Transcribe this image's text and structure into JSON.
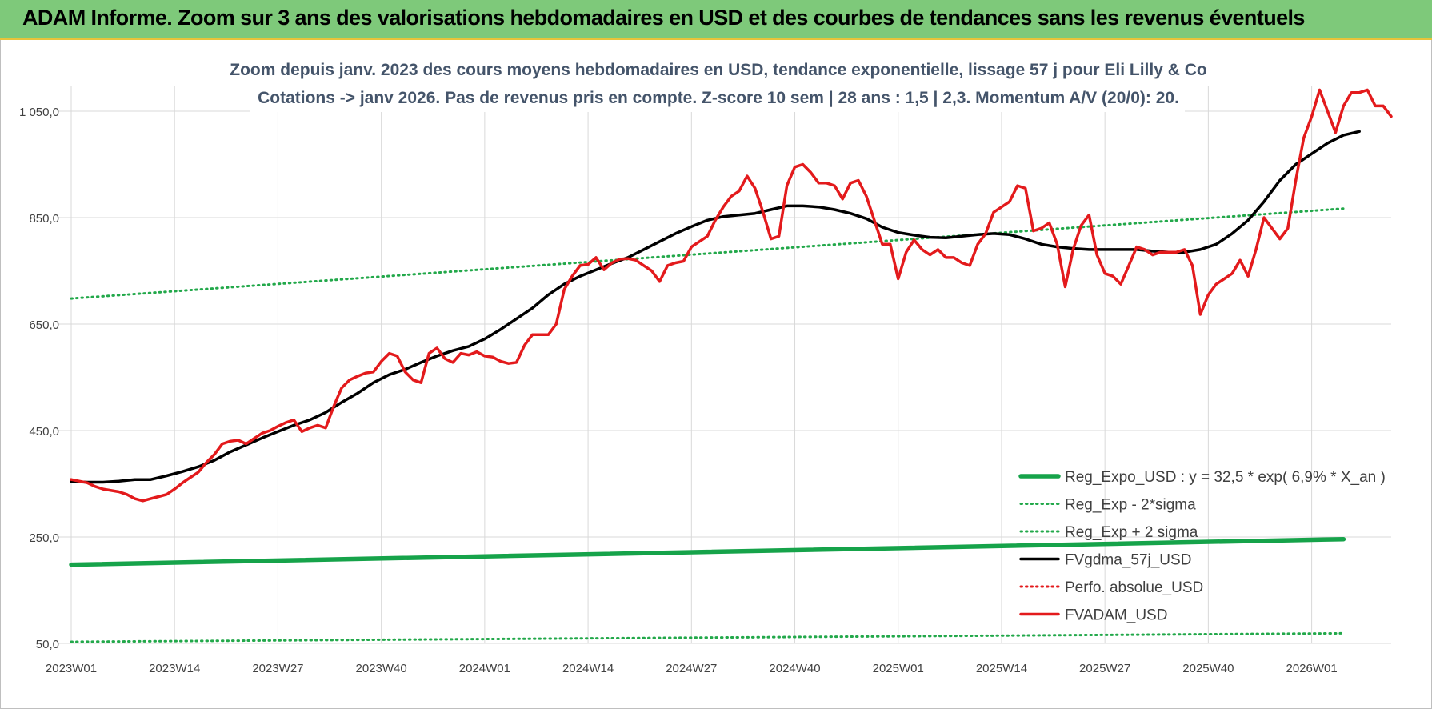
{
  "header": {
    "title": "ADAM Informe. Zoom sur 3 ans des valorisations hebdomadaires en USD et des courbes de tendances sans les revenus éventuels"
  },
  "chart_data": {
    "type": "line",
    "title": "Zoom depuis janv. 2023 des cours moyens hebdomadaires en USD, tendance exponentielle, lissage 57 j pour Eli Lilly & Co",
    "subtitle": "Cotations -> janv 2026. Pas de revenus pris en compte. Z-score 10 sem | 28 ans : 1,5 | 2,3. Momentum A/V (20/0): 20.",
    "xlabel": "",
    "ylabel": "",
    "ylim": [
      50,
      1050
    ],
    "yticks": [
      {
        "value": 50,
        "label": "50,0"
      },
      {
        "value": 250,
        "label": "250,0"
      },
      {
        "value": 450,
        "label": "450,0"
      },
      {
        "value": 650,
        "label": "650,0"
      },
      {
        "value": 850,
        "label": "850,0"
      },
      {
        "value": 1050,
        "label": "1 050,0"
      }
    ],
    "xticks": [
      {
        "week": 0,
        "label": "2023W01"
      },
      {
        "week": 13,
        "label": "2023W14"
      },
      {
        "week": 26,
        "label": "2023W27"
      },
      {
        "week": 39,
        "label": "2023W40"
      },
      {
        "week": 52,
        "label": "2024W01"
      },
      {
        "week": 65,
        "label": "2024W14"
      },
      {
        "week": 78,
        "label": "2024W27"
      },
      {
        "week": 91,
        "label": "2024W40"
      },
      {
        "week": 104,
        "label": "2025W01"
      },
      {
        "week": 117,
        "label": "2025W14"
      },
      {
        "week": 130,
        "label": "2025W27"
      },
      {
        "week": 143,
        "label": "2025W40"
      },
      {
        "week": 156,
        "label": "2026W01"
      }
    ],
    "grid": "vertical-and-horizontal",
    "legend_position": "bottom-right",
    "series": [
      {
        "name": "Reg_Expo_USD : y = 32,5 * exp( 6,9% * X_an )",
        "color": "#16a34a",
        "style": "solid-thick",
        "points": [
          [
            0,
            198
          ],
          [
            160,
            246
          ]
        ]
      },
      {
        "name": "Reg_Exp - 2*sigma",
        "color": "#22a84a",
        "style": "dotted",
        "points": [
          [
            0,
            53
          ],
          [
            160,
            69
          ]
        ]
      },
      {
        "name": "Reg_Exp + 2 sigma",
        "color": "#22a84a",
        "style": "dotted",
        "points": [
          [
            0,
            698
          ],
          [
            160,
            867
          ]
        ]
      },
      {
        "name": "FVgdma_57j_USD",
        "color": "#000000",
        "style": "solid",
        "points": [
          [
            0,
            354
          ],
          [
            2,
            353
          ],
          [
            4,
            353
          ],
          [
            6,
            355
          ],
          [
            8,
            358
          ],
          [
            10,
            358
          ],
          [
            12,
            365
          ],
          [
            14,
            373
          ],
          [
            16,
            382
          ],
          [
            18,
            394
          ],
          [
            20,
            410
          ],
          [
            22,
            423
          ],
          [
            24,
            436
          ],
          [
            26,
            448
          ],
          [
            28,
            460
          ],
          [
            30,
            470
          ],
          [
            32,
            484
          ],
          [
            34,
            503
          ],
          [
            36,
            520
          ],
          [
            38,
            540
          ],
          [
            40,
            555
          ],
          [
            42,
            565
          ],
          [
            44,
            578
          ],
          [
            46,
            590
          ],
          [
            48,
            600
          ],
          [
            50,
            608
          ],
          [
            52,
            622
          ],
          [
            54,
            640
          ],
          [
            56,
            660
          ],
          [
            58,
            680
          ],
          [
            60,
            705
          ],
          [
            62,
            725
          ],
          [
            64,
            740
          ],
          [
            66,
            752
          ],
          [
            68,
            764
          ],
          [
            70,
            775
          ],
          [
            72,
            790
          ],
          [
            74,
            805
          ],
          [
            76,
            820
          ],
          [
            78,
            833
          ],
          [
            80,
            845
          ],
          [
            82,
            852
          ],
          [
            84,
            855
          ],
          [
            86,
            858
          ],
          [
            88,
            865
          ],
          [
            90,
            872
          ],
          [
            92,
            872
          ],
          [
            94,
            870
          ],
          [
            96,
            865
          ],
          [
            98,
            858
          ],
          [
            100,
            848
          ],
          [
            102,
            832
          ],
          [
            104,
            822
          ],
          [
            106,
            817
          ],
          [
            108,
            813
          ],
          [
            110,
            812
          ],
          [
            112,
            815
          ],
          [
            114,
            818
          ],
          [
            116,
            820
          ],
          [
            118,
            818
          ],
          [
            120,
            810
          ],
          [
            122,
            800
          ],
          [
            124,
            795
          ],
          [
            126,
            792
          ],
          [
            128,
            790
          ],
          [
            130,
            790
          ],
          [
            132,
            790
          ],
          [
            134,
            790
          ],
          [
            136,
            787
          ],
          [
            138,
            785
          ],
          [
            140,
            785
          ],
          [
            142,
            790
          ],
          [
            144,
            800
          ],
          [
            146,
            820
          ],
          [
            148,
            845
          ],
          [
            150,
            880
          ],
          [
            152,
            920
          ],
          [
            154,
            950
          ],
          [
            156,
            970
          ],
          [
            158,
            990
          ],
          [
            160,
            1005
          ],
          [
            162,
            1012
          ]
        ]
      },
      {
        "name": "Perfo. absolue_USD",
        "color": "#e31a1c",
        "style": "dotted",
        "points": []
      },
      {
        "name": "FVADAM_USD",
        "color": "#e31a1c",
        "style": "solid-thick",
        "points": [
          [
            0,
            358
          ],
          [
            2,
            352
          ],
          [
            3,
            345
          ],
          [
            4,
            340
          ],
          [
            6,
            335
          ],
          [
            7,
            330
          ],
          [
            8,
            322
          ],
          [
            9,
            318
          ],
          [
            10,
            322
          ],
          [
            11,
            326
          ],
          [
            12,
            330
          ],
          [
            13,
            340
          ],
          [
            14,
            352
          ],
          [
            15,
            362
          ],
          [
            16,
            372
          ],
          [
            17,
            390
          ],
          [
            18,
            405
          ],
          [
            19,
            425
          ],
          [
            20,
            430
          ],
          [
            21,
            432
          ],
          [
            22,
            425
          ],
          [
            23,
            435
          ],
          [
            24,
            445
          ],
          [
            25,
            450
          ],
          [
            26,
            458
          ],
          [
            27,
            465
          ],
          [
            28,
            470
          ],
          [
            29,
            448
          ],
          [
            30,
            455
          ],
          [
            31,
            460
          ],
          [
            32,
            455
          ],
          [
            33,
            495
          ],
          [
            34,
            530
          ],
          [
            35,
            545
          ],
          [
            36,
            552
          ],
          [
            37,
            558
          ],
          [
            38,
            560
          ],
          [
            39,
            580
          ],
          [
            40,
            595
          ],
          [
            41,
            590
          ],
          [
            42,
            560
          ],
          [
            43,
            545
          ],
          [
            44,
            540
          ],
          [
            45,
            595
          ],
          [
            46,
            605
          ],
          [
            47,
            585
          ],
          [
            48,
            578
          ],
          [
            49,
            595
          ],
          [
            50,
            592
          ],
          [
            51,
            598
          ],
          [
            52,
            590
          ],
          [
            53,
            588
          ],
          [
            54,
            580
          ],
          [
            55,
            576
          ],
          [
            56,
            578
          ],
          [
            57,
            610
          ],
          [
            58,
            630
          ],
          [
            59,
            630
          ],
          [
            60,
            630
          ],
          [
            61,
            650
          ],
          [
            62,
            715
          ],
          [
            63,
            740
          ],
          [
            64,
            760
          ],
          [
            65,
            762
          ],
          [
            66,
            775
          ],
          [
            67,
            752
          ],
          [
            68,
            765
          ],
          [
            69,
            772
          ],
          [
            70,
            773
          ],
          [
            71,
            770
          ],
          [
            72,
            760
          ],
          [
            73,
            750
          ],
          [
            74,
            730
          ],
          [
            75,
            760
          ],
          [
            76,
            765
          ],
          [
            77,
            768
          ],
          [
            78,
            795
          ],
          [
            79,
            805
          ],
          [
            80,
            815
          ],
          [
            81,
            845
          ],
          [
            82,
            870
          ],
          [
            83,
            890
          ],
          [
            84,
            900
          ],
          [
            85,
            928
          ],
          [
            86,
            905
          ],
          [
            87,
            860
          ],
          [
            88,
            810
          ],
          [
            89,
            815
          ],
          [
            90,
            910
          ],
          [
            91,
            945
          ],
          [
            92,
            950
          ],
          [
            93,
            935
          ],
          [
            94,
            915
          ],
          [
            95,
            915
          ],
          [
            96,
            910
          ],
          [
            97,
            885
          ],
          [
            98,
            915
          ],
          [
            99,
            920
          ],
          [
            100,
            890
          ],
          [
            101,
            845
          ],
          [
            102,
            800
          ],
          [
            103,
            800
          ],
          [
            104,
            735
          ],
          [
            105,
            785
          ],
          [
            106,
            808
          ],
          [
            107,
            790
          ],
          [
            108,
            780
          ],
          [
            109,
            790
          ],
          [
            110,
            775
          ],
          [
            111,
            775
          ],
          [
            112,
            765
          ],
          [
            113,
            760
          ],
          [
            114,
            800
          ],
          [
            115,
            820
          ],
          [
            116,
            860
          ],
          [
            117,
            870
          ],
          [
            118,
            880
          ],
          [
            119,
            910
          ],
          [
            120,
            905
          ],
          [
            121,
            825
          ],
          [
            122,
            830
          ],
          [
            123,
            840
          ],
          [
            124,
            800
          ],
          [
            125,
            720
          ],
          [
            126,
            790
          ],
          [
            127,
            835
          ],
          [
            128,
            855
          ],
          [
            129,
            780
          ],
          [
            130,
            745
          ],
          [
            131,
            740
          ],
          [
            132,
            725
          ],
          [
            133,
            760
          ],
          [
            134,
            795
          ],
          [
            135,
            790
          ],
          [
            136,
            780
          ],
          [
            137,
            785
          ],
          [
            138,
            785
          ],
          [
            139,
            785
          ],
          [
            140,
            790
          ],
          [
            141,
            760
          ],
          [
            142,
            668
          ],
          [
            143,
            705
          ],
          [
            144,
            725
          ],
          [
            145,
            735
          ],
          [
            146,
            745
          ],
          [
            147,
            770
          ],
          [
            148,
            740
          ],
          [
            149,
            790
          ],
          [
            150,
            850
          ],
          [
            151,
            830
          ],
          [
            152,
            810
          ],
          [
            153,
            830
          ],
          [
            154,
            920
          ],
          [
            155,
            1000
          ],
          [
            156,
            1040
          ],
          [
            157,
            1090
          ],
          [
            158,
            1050
          ],
          [
            159,
            1010
          ],
          [
            160,
            1060
          ],
          [
            161,
            1085
          ],
          [
            162,
            1085
          ],
          [
            163,
            1090
          ],
          [
            164,
            1060
          ],
          [
            165,
            1060
          ],
          [
            166,
            1040
          ]
        ]
      }
    ]
  }
}
